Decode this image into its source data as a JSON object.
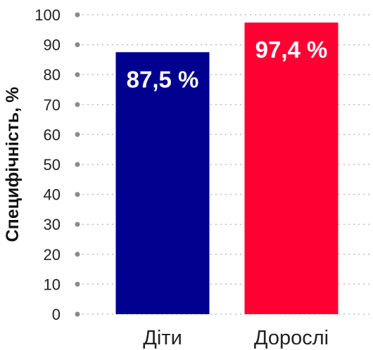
{
  "chart_data": {
    "type": "bar",
    "categories": [
      "Діти",
      "Дорослі"
    ],
    "values": [
      87.5,
      97.4
    ],
    "data_labels": [
      "87,5 %",
      "97,4 %"
    ],
    "colors": [
      "#02008e",
      "#ff0033"
    ],
    "ylabel": "Специфічність, %",
    "xlabel": "",
    "ylim": [
      0,
      100
    ],
    "yticks": [
      0,
      10,
      20,
      30,
      40,
      50,
      60,
      70,
      80,
      90,
      100
    ],
    "grid": true,
    "legend": "none"
  }
}
